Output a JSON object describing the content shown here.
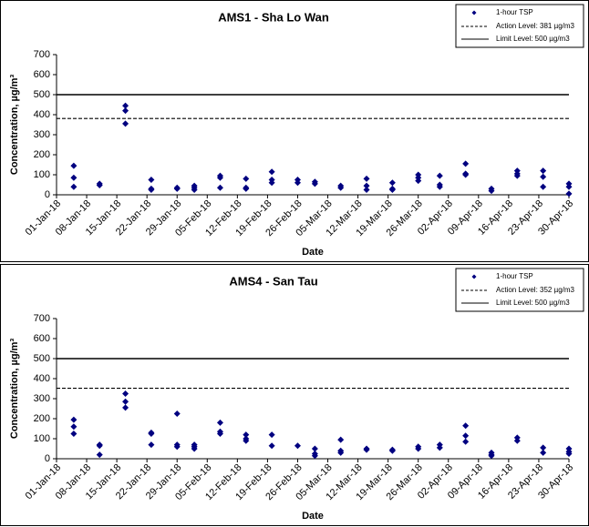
{
  "chart_data": [
    {
      "type": "scatter",
      "title": "AMS1 - Sha Lo Wan",
      "x_label": "Date",
      "y_label": "Concentration, µg/m³",
      "legend": "upper right",
      "series": [
        {
          "name": "1-hour TSP",
          "color": "#000080",
          "marker": "diamond",
          "x": [
            "2018-01-05",
            "2018-01-05",
            "2018-01-05",
            "2018-01-11",
            "2018-01-11",
            "2018-01-17",
            "2018-01-17",
            "2018-01-17",
            "2018-01-23",
            "2018-01-23",
            "2018-01-23",
            "2018-01-29",
            "2018-01-29",
            "2018-02-02",
            "2018-02-02",
            "2018-02-02",
            "2018-02-08",
            "2018-02-08",
            "2018-02-08",
            "2018-02-14",
            "2018-02-14",
            "2018-02-14",
            "2018-02-20",
            "2018-02-20",
            "2018-02-20",
            "2018-02-26",
            "2018-02-26",
            "2018-03-02",
            "2018-03-02",
            "2018-03-08",
            "2018-03-08",
            "2018-03-14",
            "2018-03-14",
            "2018-03-14",
            "2018-03-20",
            "2018-03-20",
            "2018-03-20",
            "2018-03-26",
            "2018-03-26",
            "2018-03-26",
            "2018-03-31",
            "2018-03-31",
            "2018-03-31",
            "2018-04-06",
            "2018-04-06",
            "2018-04-06",
            "2018-04-12",
            "2018-04-12",
            "2018-04-18",
            "2018-04-18",
            "2018-04-18",
            "2018-04-24",
            "2018-04-24",
            "2018-04-24",
            "2018-04-30",
            "2018-04-30",
            "2018-04-30"
          ],
          "values": [
            145,
            85,
            40,
            55,
            48,
            445,
            420,
            355,
            75,
            30,
            25,
            35,
            30,
            45,
            35,
            25,
            95,
            85,
            35,
            80,
            35,
            30,
            115,
            75,
            60,
            75,
            60,
            65,
            55,
            45,
            35,
            80,
            45,
            25,
            60,
            30,
            25,
            100,
            85,
            70,
            95,
            50,
            40,
            155,
            105,
            100,
            30,
            20,
            120,
            105,
            95,
            120,
            90,
            40,
            55,
            40,
            5
          ]
        }
      ],
      "lines": [
        {
          "name": "Action Level: 381 µg/m3",
          "value": 381,
          "style": "dashed"
        },
        {
          "name": "Limit Level: 500 µg/m3",
          "value": 500,
          "style": "solid"
        }
      ],
      "xlim": [
        "2018-01-01",
        "2018-04-30"
      ],
      "xticks": [
        {
          "value": "2018-01-01",
          "label": "01-Jan-18"
        },
        {
          "value": "2018-01-08",
          "label": "08-Jan-18"
        },
        {
          "value": "2018-01-15",
          "label": "15-Jan-18"
        },
        {
          "value": "2018-01-22",
          "label": "22-Jan-18"
        },
        {
          "value": "2018-01-29",
          "label": "29-Jan-18"
        },
        {
          "value": "2018-02-05",
          "label": "05-Feb-18"
        },
        {
          "value": "2018-02-12",
          "label": "12-Feb-18"
        },
        {
          "value": "2018-02-19",
          "label": "19-Feb-18"
        },
        {
          "value": "2018-02-26",
          "label": "26-Feb-18"
        },
        {
          "value": "2018-03-05",
          "label": "05-Mar-18"
        },
        {
          "value": "2018-03-12",
          "label": "12-Mar-18"
        },
        {
          "value": "2018-03-19",
          "label": "19-Mar-18"
        },
        {
          "value": "2018-03-26",
          "label": "26-Mar-18"
        },
        {
          "value": "2018-04-02",
          "label": "02-Apr-18"
        },
        {
          "value": "2018-04-09",
          "label": "09-Apr-18"
        },
        {
          "value": "2018-04-16",
          "label": "16-Apr-18"
        },
        {
          "value": "2018-04-23",
          "label": "23-Apr-18"
        },
        {
          "value": "2018-04-30",
          "label": "30-Apr-18"
        }
      ],
      "ylim": [
        0,
        700
      ],
      "yticks": [
        0,
        100,
        200,
        300,
        400,
        500,
        600,
        700
      ]
    },
    {
      "type": "scatter",
      "title": "AMS4 - San Tau",
      "x_label": "Date",
      "y_label": "Concentration, µg/m³",
      "legend": "upper right",
      "series": [
        {
          "name": "1-hour TSP",
          "color": "#000080",
          "marker": "diamond",
          "x": [
            "2018-01-05",
            "2018-01-05",
            "2018-01-05",
            "2018-01-11",
            "2018-01-11",
            "2018-01-11",
            "2018-01-17",
            "2018-01-17",
            "2018-01-17",
            "2018-01-23",
            "2018-01-23",
            "2018-01-23",
            "2018-01-29",
            "2018-01-29",
            "2018-01-29",
            "2018-02-02",
            "2018-02-02",
            "2018-02-02",
            "2018-02-08",
            "2018-02-08",
            "2018-02-08",
            "2018-02-14",
            "2018-02-14",
            "2018-02-14",
            "2018-02-20",
            "2018-02-20",
            "2018-02-26",
            "2018-03-02",
            "2018-03-02",
            "2018-03-02",
            "2018-03-08",
            "2018-03-08",
            "2018-03-08",
            "2018-03-14",
            "2018-03-14",
            "2018-03-20",
            "2018-03-20",
            "2018-03-26",
            "2018-03-26",
            "2018-03-31",
            "2018-03-31",
            "2018-04-06",
            "2018-04-06",
            "2018-04-06",
            "2018-04-12",
            "2018-04-12",
            "2018-04-12",
            "2018-04-18",
            "2018-04-18",
            "2018-04-24",
            "2018-04-24",
            "2018-04-30",
            "2018-04-30",
            "2018-04-30"
          ],
          "values": [
            195,
            160,
            125,
            70,
            65,
            20,
            325,
            285,
            255,
            130,
            125,
            70,
            225,
            70,
            60,
            70,
            60,
            50,
            180,
            135,
            125,
            120,
            100,
            90,
            120,
            65,
            65,
            50,
            25,
            15,
            95,
            40,
            30,
            50,
            45,
            45,
            40,
            60,
            50,
            70,
            55,
            165,
            115,
            85,
            30,
            20,
            15,
            105,
            90,
            55,
            30,
            50,
            35,
            25
          ]
        }
      ],
      "lines": [
        {
          "name": "Action Level: 352 µg/m3",
          "value": 352,
          "style": "dashed"
        },
        {
          "name": "Limit Level: 500 µg/m3",
          "value": 500,
          "style": "solid"
        }
      ],
      "xlim": [
        "2018-01-01",
        "2018-04-30"
      ],
      "xticks": [
        {
          "value": "2018-01-01",
          "label": "01-Jan-18"
        },
        {
          "value": "2018-01-08",
          "label": "08-Jan-18"
        },
        {
          "value": "2018-01-15",
          "label": "15-Jan-18"
        },
        {
          "value": "2018-01-22",
          "label": "22-Jan-18"
        },
        {
          "value": "2018-01-29",
          "label": "29-Jan-18"
        },
        {
          "value": "2018-02-05",
          "label": "05-Feb-18"
        },
        {
          "value": "2018-02-12",
          "label": "12-Feb-18"
        },
        {
          "value": "2018-02-19",
          "label": "19-Feb-18"
        },
        {
          "value": "2018-02-26",
          "label": "26-Feb-18"
        },
        {
          "value": "2018-03-05",
          "label": "05-Mar-18"
        },
        {
          "value": "2018-03-12",
          "label": "12-Mar-18"
        },
        {
          "value": "2018-03-19",
          "label": "19-Mar-18"
        },
        {
          "value": "2018-03-26",
          "label": "26-Mar-18"
        },
        {
          "value": "2018-04-02",
          "label": "02-Apr-18"
        },
        {
          "value": "2018-04-09",
          "label": "09-Apr-18"
        },
        {
          "value": "2018-04-16",
          "label": "16-Apr-18"
        },
        {
          "value": "2018-04-23",
          "label": "23-Apr-18"
        },
        {
          "value": "2018-04-30",
          "label": "30-Apr-18"
        }
      ],
      "ylim": [
        0,
        700
      ],
      "yticks": [
        0,
        100,
        200,
        300,
        400,
        500,
        600,
        700
      ]
    }
  ]
}
